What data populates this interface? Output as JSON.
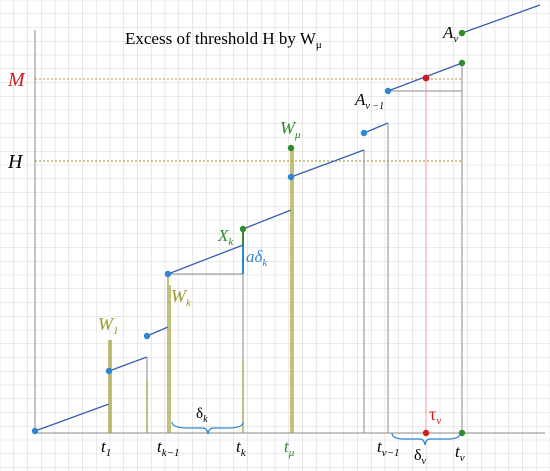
{
  "title": "Excess of threshold H  by W",
  "title_sub": "μ",
  "axis_labels": {
    "M": "M",
    "H": "H"
  },
  "time_labels": {
    "t1": "t",
    "t1_sub": "1",
    "tk1": "t",
    "tk1_sub": "k−1",
    "tk": "t",
    "tk_sub": "k",
    "tmu": "t",
    "tmu_sub": "μ",
    "tnu1": "t",
    "tnu1_sub": "ν−1",
    "tnu": "t",
    "tnu_sub": "ν"
  },
  "intervals": {
    "delta_k": "δ",
    "delta_k_sub": "k",
    "delta_nu": "δ",
    "delta_nu_sub": "ν"
  },
  "jump_labels": {
    "W1": "W",
    "W1_sub": "1",
    "Wk": "W",
    "Wk_sub": "k",
    "Wmu": "W",
    "Wmu_sub": "μ",
    "Xk": "X",
    "Xk_sub": "k",
    "a_delta": "aδ",
    "a_delta_sub": "k",
    "A_nu1": "A",
    "A_nu1_sub": "ν −1",
    "A_nu": "A",
    "A_nu_sub": "ν",
    "tau": "τ",
    "tau_sub": "ν"
  },
  "colors": {
    "grid": "#d9d9d9",
    "line": "#3a5fb0",
    "point_blue": "#2e86d1",
    "jump": "#9a9a2a",
    "green": "#2e8b2e",
    "red": "#d01c1c",
    "threshold": "#c08a3a",
    "gray": "#8a8a8a"
  }
}
